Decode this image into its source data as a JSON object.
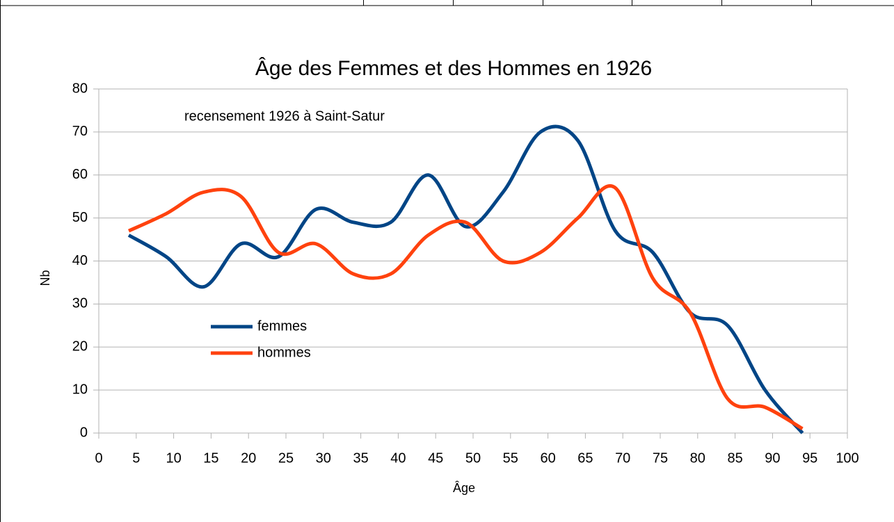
{
  "chart_data": {
    "type": "line",
    "title": "Âge des Femmes et des Hommes en 1926",
    "annotation": "recensement 1926 à Saint-Satur",
    "x_label": "Âge",
    "y_label": "Nb",
    "x": [
      4,
      9,
      14,
      19,
      24,
      29,
      34,
      39,
      44,
      49,
      54,
      59,
      64,
      69,
      74,
      79,
      84,
      89,
      94
    ],
    "series": [
      {
        "name": "femmes",
        "color": "#004586",
        "values": [
          46,
          41,
          34,
          44,
          41,
          52,
          49,
          49,
          60,
          48,
          56,
          70,
          68,
          47,
          42,
          28,
          25,
          10,
          0
        ]
      },
      {
        "name": "hommes",
        "color": "#ff420e",
        "values": [
          47,
          51,
          56,
          55,
          42,
          44,
          37,
          37,
          46,
          49,
          40,
          42,
          50,
          57,
          36,
          28,
          8,
          6,
          1
        ]
      }
    ],
    "xlim": [
      0,
      100
    ],
    "xticks": [
      0,
      5,
      10,
      15,
      20,
      25,
      30,
      35,
      40,
      45,
      50,
      55,
      60,
      65,
      70,
      75,
      80,
      85,
      90,
      95,
      100
    ],
    "ylim": [
      0,
      80
    ],
    "yticks": [
      0,
      10,
      20,
      30,
      40,
      50,
      60,
      70,
      80
    ],
    "grid": true
  }
}
